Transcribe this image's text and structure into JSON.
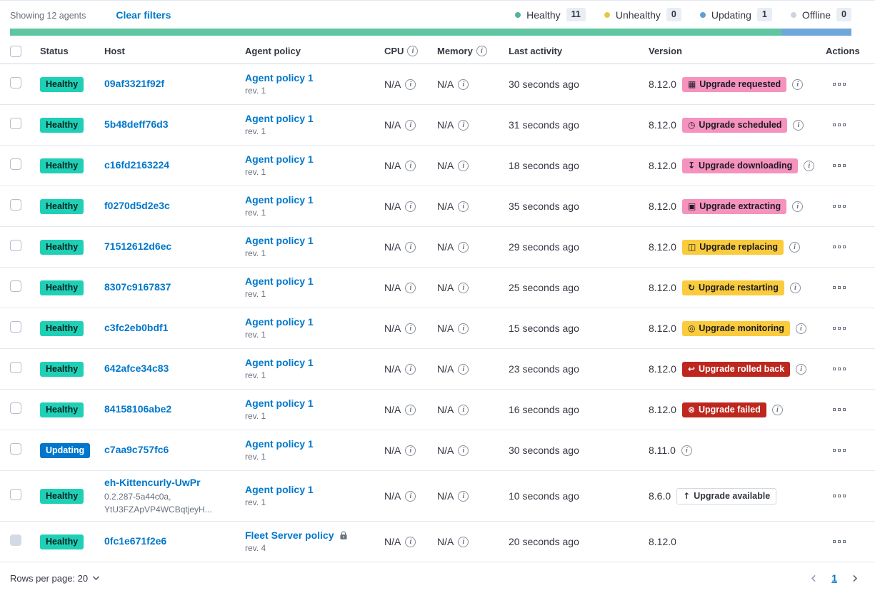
{
  "colors": {
    "link": "#0077CC",
    "healthy_badge": "#1FD0B6",
    "updating_badge": "#0077CC",
    "accent_badge": "#F692BE",
    "warning_badge": "#FACB3D",
    "danger_badge": "#BD271E",
    "health_bar_healthy": "#5FC6A1",
    "health_bar_updating": "#6FA7DB"
  },
  "toolbar": {
    "showing": "Showing 12 agents",
    "clear_filters": "Clear filters",
    "status_legend": [
      {
        "name": "healthy",
        "label": "Healthy",
        "count": "11",
        "dot_color": "#54B399"
      },
      {
        "name": "unhealthy",
        "label": "Unhealthy",
        "count": "0",
        "dot_color": "#E7C54A"
      },
      {
        "name": "updating",
        "label": "Updating",
        "count": "1",
        "dot_color": "#5F9FD7"
      },
      {
        "name": "offline",
        "label": "Offline",
        "count": "0",
        "dot_color": "#CBD4E0"
      }
    ]
  },
  "health_bar": [
    {
      "status": "healthy",
      "color": "#5FC6A1",
      "fraction": 0.9167
    },
    {
      "status": "updating",
      "color": "#6FA7DB",
      "fraction": 0.0833
    }
  ],
  "table": {
    "headers": {
      "status": "Status",
      "host": "Host",
      "agent_policy": "Agent policy",
      "cpu": "CPU",
      "memory": "Memory",
      "last_activity": "Last activity",
      "version": "Version",
      "actions": "Actions"
    },
    "rows": [
      {
        "status": {
          "label": "Healthy",
          "kind": "healthy"
        },
        "host": {
          "name": "09af3321f92f",
          "meta": []
        },
        "policy": {
          "name": "Agent policy 1",
          "rev": "rev. 1",
          "locked": false
        },
        "cpu": "N/A",
        "memory": "N/A",
        "last_activity": "30 seconds ago",
        "version": "8.12.0",
        "upgrade": {
          "label": "Upgrade requested",
          "kind": "accent",
          "icon": "calendar-icon",
          "glyph": "▦"
        },
        "version_info": true,
        "checkbox_disabled": false
      },
      {
        "status": {
          "label": "Healthy",
          "kind": "healthy"
        },
        "host": {
          "name": "5b48deff76d3",
          "meta": []
        },
        "policy": {
          "name": "Agent policy 1",
          "rev": "rev. 1",
          "locked": false
        },
        "cpu": "N/A",
        "memory": "N/A",
        "last_activity": "31 seconds ago",
        "version": "8.12.0",
        "upgrade": {
          "label": "Upgrade scheduled",
          "kind": "accent",
          "icon": "clock-icon",
          "glyph": "◷"
        },
        "version_info": true,
        "checkbox_disabled": false
      },
      {
        "status": {
          "label": "Healthy",
          "kind": "healthy"
        },
        "host": {
          "name": "c16fd2163224",
          "meta": []
        },
        "policy": {
          "name": "Agent policy 1",
          "rev": "rev. 1",
          "locked": false
        },
        "cpu": "N/A",
        "memory": "N/A",
        "last_activity": "18 seconds ago",
        "version": "8.12.0",
        "upgrade": {
          "label": "Upgrade downloading",
          "kind": "accent",
          "icon": "download-icon",
          "glyph": "↧"
        },
        "version_info": true,
        "checkbox_disabled": false
      },
      {
        "status": {
          "label": "Healthy",
          "kind": "healthy"
        },
        "host": {
          "name": "f0270d5d2e3c",
          "meta": []
        },
        "policy": {
          "name": "Agent policy 1",
          "rev": "rev. 1",
          "locked": false
        },
        "cpu": "N/A",
        "memory": "N/A",
        "last_activity": "35 seconds ago",
        "version": "8.12.0",
        "upgrade": {
          "label": "Upgrade extracting",
          "kind": "accent",
          "icon": "package-icon",
          "glyph": "▣"
        },
        "version_info": true,
        "checkbox_disabled": false
      },
      {
        "status": {
          "label": "Healthy",
          "kind": "healthy"
        },
        "host": {
          "name": "71512612d6ec",
          "meta": []
        },
        "policy": {
          "name": "Agent policy 1",
          "rev": "rev. 1",
          "locked": false
        },
        "cpu": "N/A",
        "memory": "N/A",
        "last_activity": "29 seconds ago",
        "version": "8.12.0",
        "upgrade": {
          "label": "Upgrade replacing",
          "kind": "warning",
          "icon": "copy-icon",
          "glyph": "◫"
        },
        "version_info": true,
        "checkbox_disabled": false
      },
      {
        "status": {
          "label": "Healthy",
          "kind": "healthy"
        },
        "host": {
          "name": "8307c9167837",
          "meta": []
        },
        "policy": {
          "name": "Agent policy 1",
          "rev": "rev. 1",
          "locked": false
        },
        "cpu": "N/A",
        "memory": "N/A",
        "last_activity": "25 seconds ago",
        "version": "8.12.0",
        "upgrade": {
          "label": "Upgrade restarting",
          "kind": "warning",
          "icon": "refresh-icon",
          "glyph": "↻"
        },
        "version_info": true,
        "checkbox_disabled": false
      },
      {
        "status": {
          "label": "Healthy",
          "kind": "healthy"
        },
        "host": {
          "name": "c3fc2eb0bdf1",
          "meta": []
        },
        "policy": {
          "name": "Agent policy 1",
          "rev": "rev. 1",
          "locked": false
        },
        "cpu": "N/A",
        "memory": "N/A",
        "last_activity": "15 seconds ago",
        "version": "8.12.0",
        "upgrade": {
          "label": "Upgrade monitoring",
          "kind": "warning",
          "icon": "inspect-icon",
          "glyph": "◎"
        },
        "version_info": true,
        "checkbox_disabled": false
      },
      {
        "status": {
          "label": "Healthy",
          "kind": "healthy"
        },
        "host": {
          "name": "642afce34c83",
          "meta": []
        },
        "policy": {
          "name": "Agent policy 1",
          "rev": "rev. 1",
          "locked": false
        },
        "cpu": "N/A",
        "memory": "N/A",
        "last_activity": "23 seconds ago",
        "version": "8.12.0",
        "upgrade": {
          "label": "Upgrade rolled back",
          "kind": "danger",
          "icon": "return-arrow-icon",
          "glyph": "↩"
        },
        "version_info": true,
        "checkbox_disabled": false
      },
      {
        "status": {
          "label": "Healthy",
          "kind": "healthy"
        },
        "host": {
          "name": "84158106abe2",
          "meta": []
        },
        "policy": {
          "name": "Agent policy 1",
          "rev": "rev. 1",
          "locked": false
        },
        "cpu": "N/A",
        "memory": "N/A",
        "last_activity": "16 seconds ago",
        "version": "8.12.0",
        "upgrade": {
          "label": "Upgrade failed",
          "kind": "danger",
          "icon": "cross-in-circle-icon",
          "glyph": "⊗"
        },
        "version_info": true,
        "checkbox_disabled": false
      },
      {
        "status": {
          "label": "Updating",
          "kind": "updating"
        },
        "host": {
          "name": "c7aa9c757fc6",
          "meta": []
        },
        "policy": {
          "name": "Agent policy 1",
          "rev": "rev. 1",
          "locked": false
        },
        "cpu": "N/A",
        "memory": "N/A",
        "last_activity": "30 seconds ago",
        "version": "8.11.0",
        "upgrade": null,
        "version_info": true,
        "checkbox_disabled": false
      },
      {
        "status": {
          "label": "Healthy",
          "kind": "healthy"
        },
        "host": {
          "name": "eh-Kittencurly-UwPr",
          "meta": [
            "0.2.287-5a44c0a,",
            "YtU3FZApVP4WCBqtjeyH..."
          ]
        },
        "policy": {
          "name": "Agent policy 1",
          "rev": "rev. 1",
          "locked": false
        },
        "cpu": "N/A",
        "memory": "N/A",
        "last_activity": "10 seconds ago",
        "version": "8.6.0",
        "upgrade": {
          "label": "Upgrade available",
          "kind": "hollow",
          "icon": "arrow-up-icon",
          "glyph": "↑"
        },
        "version_info": false,
        "checkbox_disabled": false
      },
      {
        "status": {
          "label": "Healthy",
          "kind": "healthy"
        },
        "host": {
          "name": "0fc1e671f2e6",
          "meta": []
        },
        "policy": {
          "name": "Fleet Server policy",
          "rev": "rev. 4",
          "locked": true
        },
        "cpu": "N/A",
        "memory": "N/A",
        "last_activity": "20 seconds ago",
        "version": "8.12.0",
        "upgrade": null,
        "version_info": false,
        "checkbox_disabled": true
      }
    ]
  },
  "footer": {
    "rows_per_page_label": "Rows per page: 20",
    "page": "1"
  }
}
